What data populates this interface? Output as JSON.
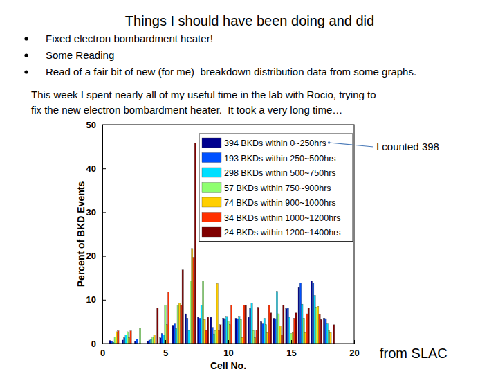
{
  "slide": {
    "title": "Things I should have been doing and did",
    "bullets": [
      "Fixed electron bombardment heater!",
      "Some Reading",
      "Read of a fair bit of new (for me)  breakdown distribution data from some graphs."
    ],
    "paragraph": [
      "This week I spent nearly all of my useful time in the lab with Rocio, trying to",
      "fix the new electron bombardment heater.  It took a very long time…"
    ]
  },
  "chart_data": {
    "type": "bar",
    "x_label": "Cell No.",
    "y_label": "Percent of BKD Events",
    "x": [
      1,
      2,
      3,
      4,
      5,
      6,
      7,
      8,
      9,
      10,
      11,
      12,
      13,
      14,
      15,
      16,
      17,
      18
    ],
    "xlim": [
      0,
      20
    ],
    "xticks": [
      0,
      5,
      10,
      15,
      20
    ],
    "ylim": [
      0,
      50
    ],
    "yticks": [
      0,
      10,
      20,
      30,
      40,
      50
    ],
    "grid": false,
    "legend": "upper right",
    "annotations": [
      "I counted 398",
      "from SLAC"
    ],
    "series": [
      {
        "name": "394 BKDs within 0~250hrs",
        "color": "#00008f",
        "values": [
          0.7,
          0.8,
          0.5,
          0.5,
          1.3,
          4.2,
          6.8,
          6.0,
          6.0,
          5.8,
          5.8,
          6.0,
          5.0,
          5.8,
          8.0,
          12.8,
          14.3,
          5.8
        ]
      },
      {
        "name": "193 BKDs within 250~500hrs",
        "color": "#0050ff",
        "values": [
          0.5,
          1.3,
          1.0,
          0.8,
          2.3,
          4.5,
          5.8,
          5.8,
          3.7,
          5.5,
          5.7,
          8.0,
          4.5,
          5.7,
          8.2,
          13.8,
          13.8,
          5.7
        ]
      },
      {
        "name": "298 BKDs within 500~750hrs",
        "color": "#00dfff",
        "values": [
          0.3,
          2.0,
          0,
          1.0,
          2.0,
          3.4,
          3.0,
          8.8,
          2.2,
          6.2,
          6.2,
          9.2,
          5.8,
          11.9,
          6.0,
          9.0,
          11.0,
          4.5
        ]
      },
      {
        "name": "57 BKDs within 750~900hrs",
        "color": "#8fff70",
        "values": [
          1.5,
          2.7,
          3.5,
          1.5,
          8.8,
          8.8,
          14.3,
          14.3,
          3.0,
          5.2,
          5.5,
          3.0,
          4.3,
          6.8,
          2.3,
          5.8,
          8.3,
          3.0
        ]
      },
      {
        "name": "74 BKDs within 900~1000hrs",
        "color": "#ffcf00",
        "values": [
          2.7,
          1.3,
          0,
          2.0,
          4.3,
          9.3,
          21.7,
          5.5,
          13.7,
          4.3,
          1.4,
          1.3,
          2.5,
          4.0,
          2.5,
          2.5,
          8.5,
          2.5
        ]
      },
      {
        "name": "34 BKDs within 1000~1200hrs",
        "color": "#ff3000",
        "values": [
          2.9,
          2.9,
          0,
          0,
          11.8,
          8.8,
          19.7,
          3.0,
          3.0,
          8.8,
          8.8,
          3.0,
          8.8,
          2.0,
          5.8,
          6.8,
          6.7,
          0
        ]
      },
      {
        "name": "24 BKDs within 1200~1400hrs",
        "color": "#800000",
        "values": [
          0,
          0,
          0,
          8.2,
          0,
          16.8,
          45.8,
          6.0,
          4.3,
          0,
          8.8,
          8.3,
          7.0,
          8.8,
          7.0,
          8.2,
          5.5,
          4.3
        ]
      }
    ]
  }
}
